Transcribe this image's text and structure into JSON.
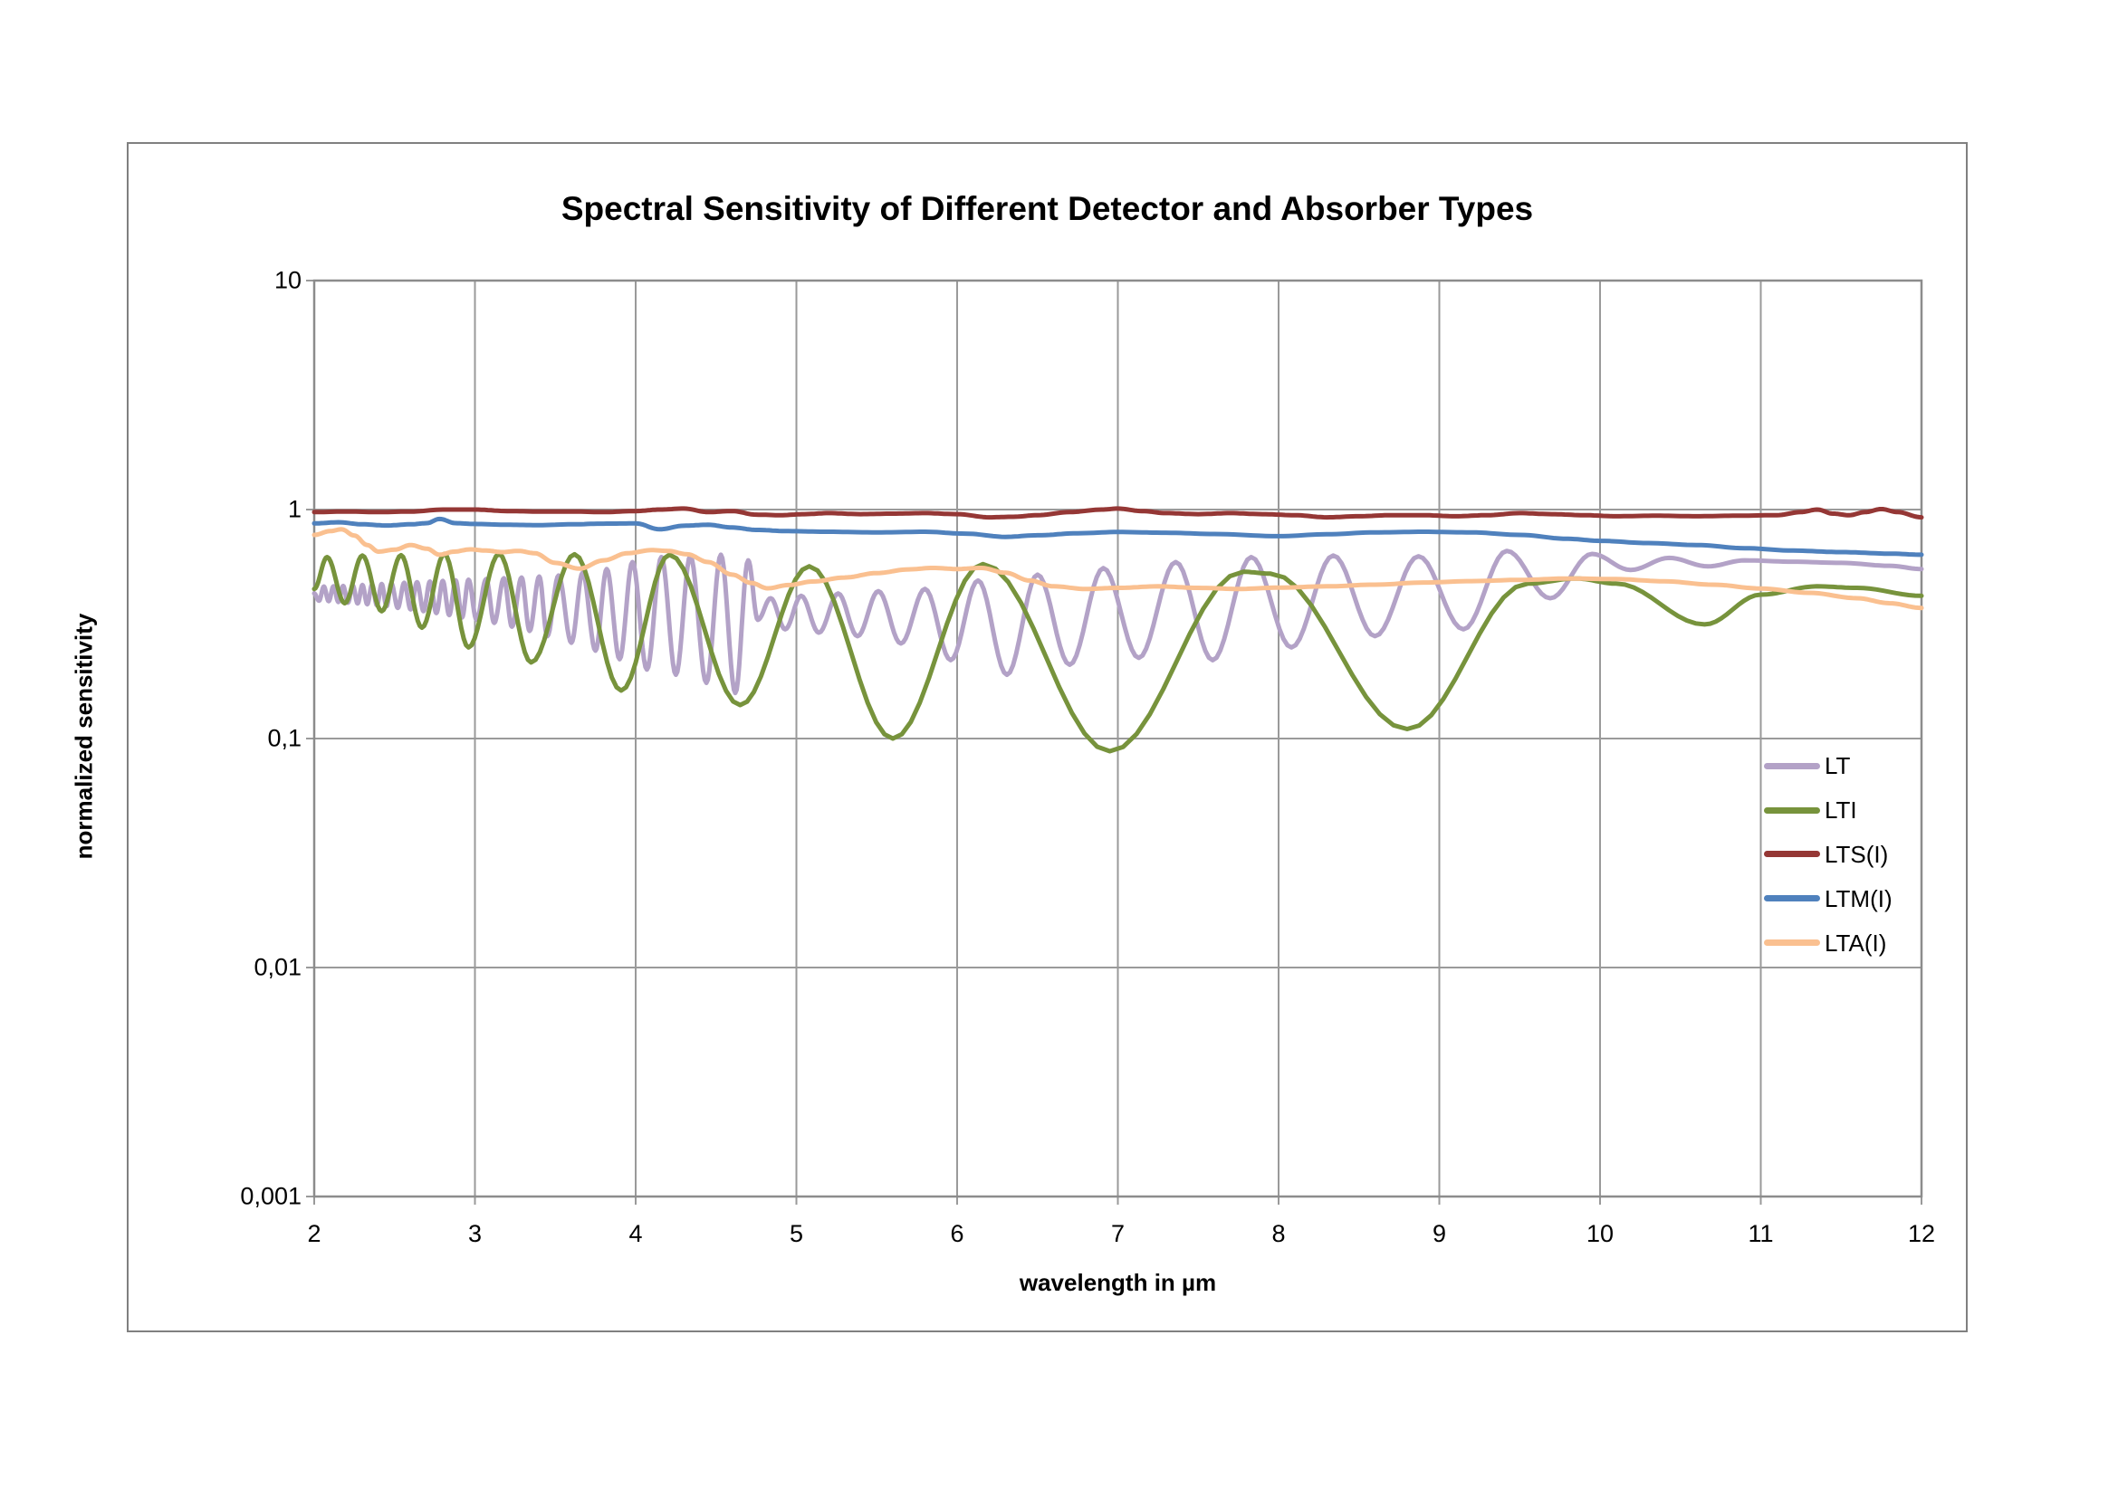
{
  "page": {
    "background": "#ffffff"
  },
  "chart_data": {
    "type": "line",
    "title": "Spectral Sensitivity of Different Detector and Absorber Types",
    "xlabel": "wavelength in µm",
    "ylabel": "normalized sensitivity",
    "x_scale": "linear",
    "y_scale": "log",
    "xlim": [
      2,
      12
    ],
    "ylim": [
      0.001,
      10
    ],
    "x_ticks": [
      2,
      3,
      4,
      5,
      6,
      7,
      8,
      9,
      10,
      11,
      12
    ],
    "x_tick_labels": [
      "2",
      "3",
      "4",
      "5",
      "6",
      "7",
      "8",
      "9",
      "10",
      "11",
      "12"
    ],
    "y_ticks": [
      10,
      1,
      0.1,
      0.01,
      0.001
    ],
    "y_tick_labels": [
      "10",
      "1",
      "0,1",
      "0,01",
      "0,001"
    ],
    "grid": true,
    "legend_position": "inside-right-center",
    "colors": {
      "gridline": "#9a9a9a",
      "frame": "#8c8c8c",
      "outer_border": "#808080",
      "text": "#000000",
      "background": "#ffffff"
    },
    "series": [
      {
        "name": "LT",
        "color": "#b3a2c7",
        "points": [
          [
            2.0,
            0.43
          ],
          [
            2.03,
            0.4
          ],
          [
            2.06,
            0.461
          ],
          [
            2.09,
            0.398
          ],
          [
            2.12,
            0.462
          ],
          [
            2.15,
            0.395
          ],
          [
            2.18,
            0.464
          ],
          [
            2.21,
            0.392
          ],
          [
            2.24,
            0.466
          ],
          [
            2.27,
            0.389
          ],
          [
            2.3,
            0.468
          ],
          [
            2.33,
            0.386
          ],
          [
            2.36,
            0.47
          ],
          [
            2.39,
            0.382
          ],
          [
            2.42,
            0.473
          ],
          [
            2.45,
            0.378
          ],
          [
            2.48,
            0.476
          ],
          [
            2.52,
            0.372
          ],
          [
            2.56,
            0.479
          ],
          [
            2.6,
            0.366
          ],
          [
            2.64,
            0.482
          ],
          [
            2.68,
            0.36
          ],
          [
            2.72,
            0.485
          ],
          [
            2.76,
            0.353
          ],
          [
            2.8,
            0.488
          ],
          [
            2.84,
            0.346
          ],
          [
            2.88,
            0.491
          ],
          [
            2.92,
            0.338
          ],
          [
            2.96,
            0.494
          ],
          [
            3.01,
            0.33
          ],
          [
            3.07,
            0.497
          ],
          [
            3.12,
            0.32
          ],
          [
            3.18,
            0.501
          ],
          [
            3.23,
            0.308
          ],
          [
            3.29,
            0.505
          ],
          [
            3.34,
            0.295
          ],
          [
            3.4,
            0.51
          ],
          [
            3.45,
            0.28
          ],
          [
            3.52,
            0.515
          ],
          [
            3.6,
            0.262
          ],
          [
            3.67,
            0.53
          ],
          [
            3.75,
            0.242
          ],
          [
            3.82,
            0.55
          ],
          [
            3.9,
            0.222
          ],
          [
            3.98,
            0.59
          ],
          [
            4.07,
            0.2
          ],
          [
            4.16,
            0.62
          ],
          [
            4.25,
            0.19
          ],
          [
            4.34,
            0.628
          ],
          [
            4.44,
            0.175
          ],
          [
            4.53,
            0.635
          ],
          [
            4.62,
            0.158
          ],
          [
            4.7,
            0.6
          ],
          [
            4.76,
            0.33
          ],
          [
            4.84,
            0.41
          ],
          [
            4.93,
            0.3
          ],
          [
            5.03,
            0.42
          ],
          [
            5.14,
            0.29
          ],
          [
            5.26,
            0.43
          ],
          [
            5.38,
            0.28
          ],
          [
            5.51,
            0.44
          ],
          [
            5.65,
            0.26
          ],
          [
            5.8,
            0.45
          ],
          [
            5.96,
            0.22
          ],
          [
            6.13,
            0.49
          ],
          [
            6.31,
            0.19
          ],
          [
            6.5,
            0.52
          ],
          [
            6.7,
            0.21
          ],
          [
            6.91,
            0.555
          ],
          [
            7.13,
            0.225
          ],
          [
            7.36,
            0.59
          ],
          [
            7.59,
            0.22
          ],
          [
            7.83,
            0.62
          ],
          [
            8.08,
            0.25
          ],
          [
            8.34,
            0.63
          ],
          [
            8.6,
            0.28
          ],
          [
            8.87,
            0.625
          ],
          [
            9.15,
            0.3
          ],
          [
            9.42,
            0.66
          ],
          [
            9.69,
            0.41
          ],
          [
            9.95,
            0.64
          ],
          [
            10.19,
            0.545
          ],
          [
            10.43,
            0.615
          ],
          [
            10.67,
            0.565
          ],
          [
            10.9,
            0.6
          ],
          [
            11.2,
            0.592
          ],
          [
            11.5,
            0.585
          ],
          [
            11.8,
            0.568
          ],
          [
            12.0,
            0.55
          ]
        ]
      },
      {
        "name": "LTI",
        "color": "#77933c",
        "points": [
          [
            2.0,
            0.45
          ],
          [
            2.08,
            0.62
          ],
          [
            2.19,
            0.39
          ],
          [
            2.3,
            0.63
          ],
          [
            2.42,
            0.36
          ],
          [
            2.54,
            0.632
          ],
          [
            2.67,
            0.305
          ],
          [
            2.81,
            0.64
          ],
          [
            2.96,
            0.25
          ],
          [
            3.15,
            0.64
          ],
          [
            3.35,
            0.215
          ],
          [
            3.62,
            0.638
          ],
          [
            3.91,
            0.162
          ],
          [
            4.21,
            0.635
          ],
          [
            4.65,
            0.14
          ],
          [
            5.08,
            0.565
          ],
          [
            5.6,
            0.1
          ],
          [
            6.16,
            0.578
          ],
          [
            6.95,
            0.088
          ],
          [
            7.78,
            0.535
          ],
          [
            7.95,
            0.525
          ],
          [
            8.8,
            0.11
          ],
          [
            9.55,
            0.475
          ],
          [
            9.85,
            0.5
          ],
          [
            10.1,
            0.475
          ],
          [
            10.65,
            0.315
          ],
          [
            11.0,
            0.425
          ],
          [
            11.35,
            0.462
          ],
          [
            11.6,
            0.455
          ],
          [
            12.0,
            0.42
          ]
        ]
      },
      {
        "name": "LTS(I)",
        "color": "#953735",
        "points": [
          [
            2.0,
            0.975
          ],
          [
            2.2,
            0.98
          ],
          [
            2.4,
            0.975
          ],
          [
            2.6,
            0.98
          ],
          [
            2.8,
            1.0
          ],
          [
            3.0,
            1.0
          ],
          [
            3.2,
            0.985
          ],
          [
            3.4,
            0.98
          ],
          [
            3.6,
            0.98
          ],
          [
            3.8,
            0.975
          ],
          [
            4.0,
            0.985
          ],
          [
            4.15,
            1.0
          ],
          [
            4.3,
            1.01
          ],
          [
            4.45,
            0.975
          ],
          [
            4.6,
            0.985
          ],
          [
            4.75,
            0.95
          ],
          [
            4.9,
            0.945
          ],
          [
            5.05,
            0.955
          ],
          [
            5.2,
            0.965
          ],
          [
            5.4,
            0.955
          ],
          [
            5.6,
            0.96
          ],
          [
            5.8,
            0.965
          ],
          [
            6.0,
            0.955
          ],
          [
            6.2,
            0.925
          ],
          [
            6.35,
            0.93
          ],
          [
            6.5,
            0.945
          ],
          [
            6.7,
            0.975
          ],
          [
            6.9,
            1.0
          ],
          [
            7.0,
            1.01
          ],
          [
            7.15,
            0.985
          ],
          [
            7.3,
            0.965
          ],
          [
            7.5,
            0.955
          ],
          [
            7.7,
            0.965
          ],
          [
            7.9,
            0.955
          ],
          [
            8.1,
            0.945
          ],
          [
            8.3,
            0.925
          ],
          [
            8.5,
            0.935
          ],
          [
            8.7,
            0.945
          ],
          [
            8.9,
            0.945
          ],
          [
            9.1,
            0.935
          ],
          [
            9.3,
            0.945
          ],
          [
            9.5,
            0.965
          ],
          [
            9.7,
            0.955
          ],
          [
            9.9,
            0.945
          ],
          [
            10.1,
            0.935
          ],
          [
            10.35,
            0.94
          ],
          [
            10.6,
            0.935
          ],
          [
            10.85,
            0.94
          ],
          [
            11.1,
            0.945
          ],
          [
            11.25,
            0.975
          ],
          [
            11.35,
            1.0
          ],
          [
            11.45,
            0.96
          ],
          [
            11.55,
            0.945
          ],
          [
            11.65,
            0.975
          ],
          [
            11.75,
            1.005
          ],
          [
            11.85,
            0.975
          ],
          [
            12.0,
            0.925
          ]
        ]
      },
      {
        "name": "LTM(I)",
        "color": "#4f81bd",
        "points": [
          [
            2.0,
            0.87
          ],
          [
            2.15,
            0.88
          ],
          [
            2.3,
            0.862
          ],
          [
            2.45,
            0.852
          ],
          [
            2.6,
            0.862
          ],
          [
            2.7,
            0.872
          ],
          [
            2.78,
            0.91
          ],
          [
            2.88,
            0.872
          ],
          [
            3.0,
            0.865
          ],
          [
            3.2,
            0.858
          ],
          [
            3.4,
            0.855
          ],
          [
            3.6,
            0.862
          ],
          [
            3.8,
            0.868
          ],
          [
            4.0,
            0.87
          ],
          [
            4.15,
            0.82
          ],
          [
            4.3,
            0.85
          ],
          [
            4.45,
            0.858
          ],
          [
            4.6,
            0.835
          ],
          [
            4.75,
            0.815
          ],
          [
            4.95,
            0.805
          ],
          [
            5.2,
            0.8
          ],
          [
            5.5,
            0.795
          ],
          [
            5.8,
            0.8
          ],
          [
            6.05,
            0.785
          ],
          [
            6.3,
            0.76
          ],
          [
            6.5,
            0.772
          ],
          [
            6.75,
            0.788
          ],
          [
            7.0,
            0.798
          ],
          [
            7.3,
            0.792
          ],
          [
            7.6,
            0.782
          ],
          [
            8.0,
            0.765
          ],
          [
            8.3,
            0.78
          ],
          [
            8.6,
            0.795
          ],
          [
            8.9,
            0.8
          ],
          [
            9.2,
            0.795
          ],
          [
            9.5,
            0.775
          ],
          [
            9.8,
            0.745
          ],
          [
            10.0,
            0.73
          ],
          [
            10.3,
            0.714
          ],
          [
            10.6,
            0.7
          ],
          [
            10.9,
            0.678
          ],
          [
            11.2,
            0.662
          ],
          [
            11.5,
            0.652
          ],
          [
            11.8,
            0.642
          ],
          [
            12.0,
            0.635
          ]
        ]
      },
      {
        "name": "LTA(I)",
        "color": "#fac090",
        "points": [
          [
            2.0,
            0.775
          ],
          [
            2.1,
            0.805
          ],
          [
            2.17,
            0.82
          ],
          [
            2.25,
            0.77
          ],
          [
            2.33,
            0.7
          ],
          [
            2.4,
            0.655
          ],
          [
            2.5,
            0.668
          ],
          [
            2.6,
            0.7
          ],
          [
            2.7,
            0.675
          ],
          [
            2.78,
            0.635
          ],
          [
            2.87,
            0.655
          ],
          [
            2.97,
            0.67
          ],
          [
            3.07,
            0.662
          ],
          [
            3.17,
            0.652
          ],
          [
            3.27,
            0.66
          ],
          [
            3.37,
            0.645
          ],
          [
            3.5,
            0.585
          ],
          [
            3.65,
            0.552
          ],
          [
            3.8,
            0.6
          ],
          [
            3.95,
            0.645
          ],
          [
            4.1,
            0.665
          ],
          [
            4.2,
            0.66
          ],
          [
            4.32,
            0.638
          ],
          [
            4.45,
            0.59
          ],
          [
            4.6,
            0.52
          ],
          [
            4.72,
            0.478
          ],
          [
            4.82,
            0.453
          ],
          [
            4.95,
            0.468
          ],
          [
            5.1,
            0.485
          ],
          [
            5.3,
            0.505
          ],
          [
            5.5,
            0.528
          ],
          [
            5.7,
            0.548
          ],
          [
            5.85,
            0.556
          ],
          [
            6.0,
            0.55
          ],
          [
            6.15,
            0.556
          ],
          [
            6.3,
            0.53
          ],
          [
            6.45,
            0.49
          ],
          [
            6.6,
            0.462
          ],
          [
            6.8,
            0.45
          ],
          [
            7.0,
            0.455
          ],
          [
            7.25,
            0.462
          ],
          [
            7.5,
            0.455
          ],
          [
            7.75,
            0.45
          ],
          [
            8.0,
            0.456
          ],
          [
            8.3,
            0.462
          ],
          [
            8.6,
            0.47
          ],
          [
            8.9,
            0.48
          ],
          [
            9.2,
            0.487
          ],
          [
            9.5,
            0.493
          ],
          [
            9.8,
            0.5
          ],
          [
            10.1,
            0.497
          ],
          [
            10.4,
            0.486
          ],
          [
            10.7,
            0.47
          ],
          [
            11.0,
            0.452
          ],
          [
            11.3,
            0.433
          ],
          [
            11.6,
            0.41
          ],
          [
            11.8,
            0.39
          ],
          [
            12.0,
            0.372
          ]
        ]
      }
    ]
  }
}
